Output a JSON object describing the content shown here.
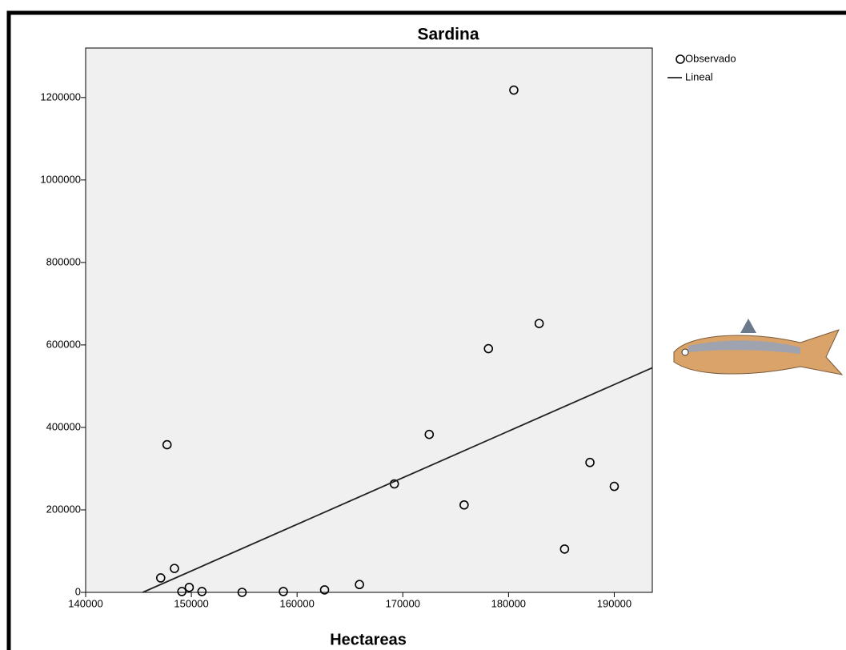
{
  "chart_data": {
    "type": "scatter",
    "title": "Sardina",
    "x_label": "Hectareas",
    "xlim": [
      140000,
      193600
    ],
    "ylim": [
      0,
      1320000
    ],
    "xticks": [
      140000,
      150000,
      160000,
      170000,
      180000,
      190000
    ],
    "yticks": [
      0,
      200000,
      400000,
      600000,
      800000,
      1000000,
      1200000
    ],
    "series": [
      {
        "name": "Observado",
        "type": "scatter",
        "color": "#000000",
        "x": [
          147100,
          147700,
          148400,
          149100,
          149800,
          151000,
          154800,
          158700,
          162600,
          165900,
          169200,
          172500,
          175800,
          178100,
          180500,
          182900,
          185300,
          187700,
          190000
        ],
        "values": [
          35000,
          358000,
          58000,
          2000,
          12000,
          2000,
          0,
          2000,
          6000,
          19000,
          263000,
          383000,
          212000,
          591000,
          1218000,
          652000,
          105000,
          315000,
          257000
        ]
      },
      {
        "name": "Lineal",
        "type": "line",
        "color": "#222222",
        "x": [
          145400,
          193600
        ],
        "values": [
          0,
          544600
        ]
      }
    ]
  }
}
